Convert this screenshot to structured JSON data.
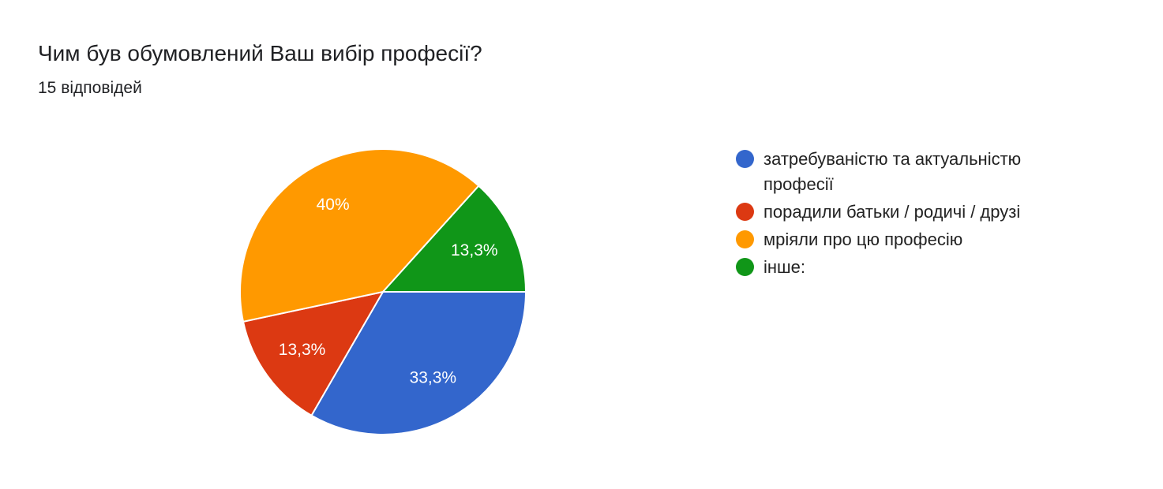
{
  "chart_data": {
    "type": "pie",
    "title": "Чим був обумовлений Ваш вибір професії?",
    "subtitle": "15 відповідей",
    "categories": [
      "затребуваністю та актуальністю професії",
      "порадили батьки / родичі / друзі",
      "мріяли про цю професію",
      "інше:"
    ],
    "values": [
      33.3,
      13.3,
      40,
      13.3
    ],
    "value_labels": [
      "33,3%",
      "13,3%",
      "40%",
      "13,3%"
    ],
    "colors": [
      "#3366cc",
      "#dc3912",
      "#ff9900",
      "#109618"
    ],
    "legend": "right"
  }
}
